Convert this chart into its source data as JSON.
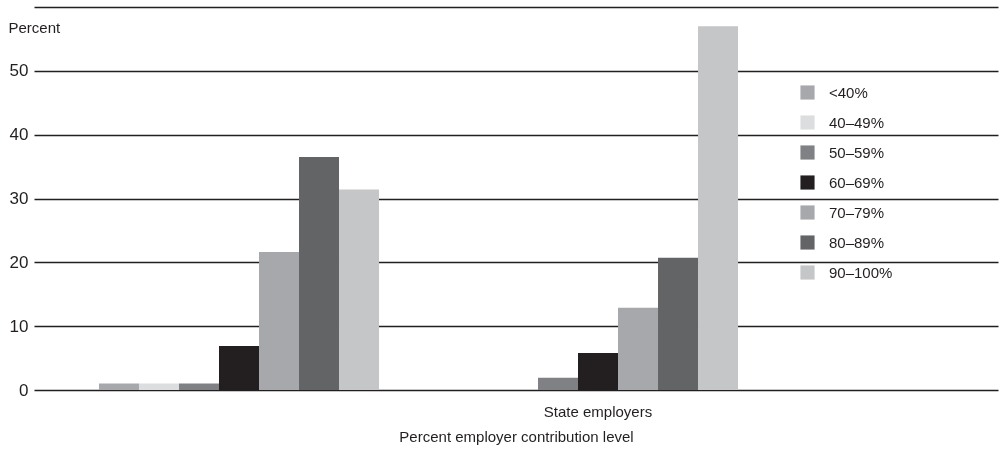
{
  "chart_data": {
    "type": "bar",
    "ylabel": "Percent",
    "xlabel": "Percent employer contribution level",
    "categories": [
      null,
      "State employers"
    ],
    "series": [
      {
        "name": "<40%",
        "color": "#a7a8ab",
        "values": [
          1,
          0
        ]
      },
      {
        "name": "40–49%",
        "color": "#dcdddf",
        "values": [
          1,
          0
        ]
      },
      {
        "name": "50–59%",
        "color": "#808184",
        "values": [
          1,
          1.9
        ]
      },
      {
        "name": "60–69%",
        "color": "#231f20",
        "values": [
          6.9,
          5.8
        ]
      },
      {
        "name": "70–79%",
        "color": "#a7a8ab",
        "values": [
          21.6,
          12.9
        ]
      },
      {
        "name": "80–89%",
        "color": "#636466",
        "values": [
          36.5,
          20.7
        ]
      },
      {
        "name": "90–100%",
        "color": "#c5c6c8",
        "values": [
          31.4,
          57
        ]
      }
    ],
    "ylim": [
      0,
      60
    ],
    "yticks": [
      0,
      10,
      20,
      30,
      40,
      50,
      {
        "value": 60,
        "label": null
      }
    ],
    "grid": "y",
    "legend": "right"
  }
}
